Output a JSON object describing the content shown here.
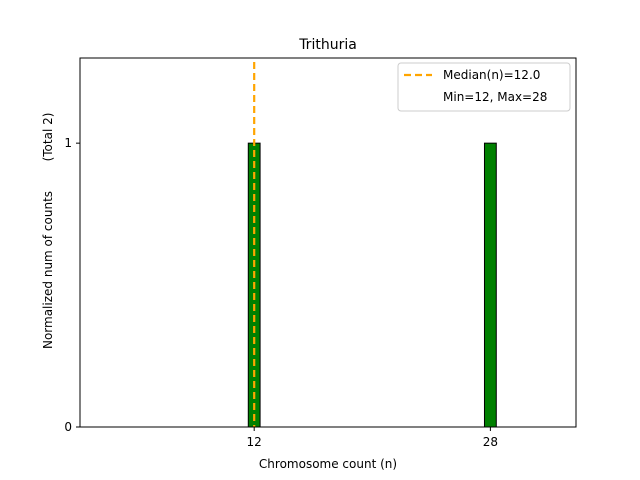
{
  "chart_data": {
    "type": "bar",
    "title": "Trithuria",
    "xlabel": "Chromosome count (n)",
    "ylabel": "Normalized num of counts",
    "ylabel_note": "(Total 2)",
    "x": [
      12,
      28
    ],
    "x_tick_labels": [
      "12",
      "28"
    ],
    "values": [
      1,
      1
    ],
    "xlim": [
      0.2,
      33.8
    ],
    "ylim": [
      0,
      1.3
    ],
    "y_ticks": [
      0,
      1
    ],
    "y_tick_labels": [
      "0",
      "1"
    ],
    "bar_width": 0.8,
    "median": 12.0,
    "legend": {
      "placement": "top-right",
      "entries": [
        "Median(n)=12.0",
        "Min=12, Max=28"
      ]
    },
    "grid": false,
    "colors": {
      "bar_fill": "#008000",
      "bar_edge": "#000000",
      "median_line": "#FFA500"
    }
  }
}
